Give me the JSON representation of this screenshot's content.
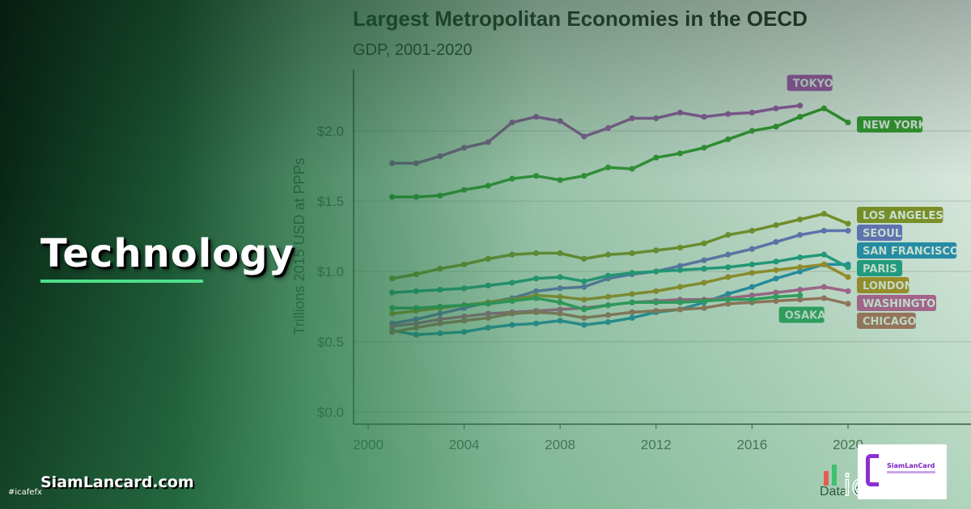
{
  "page": {
    "category": "Technology",
    "site": "SiamLancard.com",
    "hashtag": "#icafefx",
    "logo_text": "SiamLanCard"
  },
  "chart_data": {
    "type": "line",
    "title": "Largest Metropolitan Economies in the OECD",
    "subtitle": "GDP, 2001-2020",
    "ylabel": "Trillions 2015 USD at PPPs",
    "source": "Data: OECD, US BEA",
    "xlim": [
      2000,
      2020
    ],
    "ylim": [
      0,
      2.4
    ],
    "xticks": [
      2000,
      2004,
      2008,
      2012,
      2016,
      2020
    ],
    "yticks": [
      {
        "value": 0,
        "label": "$0.0"
      },
      {
        "value": 0.5,
        "label": "$0.5"
      },
      {
        "value": 1.0,
        "label": "$1.0"
      },
      {
        "value": 1.5,
        "label": "$1.5"
      },
      {
        "value": 2.0,
        "label": "$2.0"
      }
    ],
    "grid": true,
    "series": [
      {
        "name": "TOKYO",
        "color": "#b046b8",
        "label_pos": "top",
        "x": [
          2001,
          2002,
          2003,
          2004,
          2005,
          2006,
          2007,
          2008,
          2009,
          2010,
          2011,
          2012,
          2013,
          2014,
          2015,
          2016,
          2017,
          2018
        ],
        "values": [
          1.77,
          1.77,
          1.82,
          1.88,
          1.92,
          2.06,
          2.1,
          2.07,
          1.96,
          2.02,
          2.09,
          2.09,
          2.13,
          2.1,
          2.12,
          2.13,
          2.16,
          2.18
        ]
      },
      {
        "name": "NEW YORK",
        "color": "#2e9a22",
        "label_pos": "right",
        "x": [
          2001,
          2002,
          2003,
          2004,
          2005,
          2006,
          2007,
          2008,
          2009,
          2010,
          2011,
          2012,
          2013,
          2014,
          2015,
          2016,
          2017,
          2018,
          2019,
          2020
        ],
        "values": [
          1.53,
          1.53,
          1.54,
          1.58,
          1.61,
          1.66,
          1.68,
          1.65,
          1.68,
          1.74,
          1.73,
          1.81,
          1.84,
          1.88,
          1.94,
          2.0,
          2.03,
          2.1,
          2.16,
          2.06
        ]
      },
      {
        "name": "LOS ANGELES",
        "color": "#8e8f12",
        "label_pos": "right",
        "x": [
          2001,
          2002,
          2003,
          2004,
          2005,
          2006,
          2007,
          2008,
          2009,
          2010,
          2011,
          2012,
          2013,
          2014,
          2015,
          2016,
          2017,
          2018,
          2019,
          2020
        ],
        "values": [
          0.95,
          0.98,
          1.02,
          1.05,
          1.09,
          1.12,
          1.13,
          1.13,
          1.09,
          1.12,
          1.13,
          1.15,
          1.17,
          1.2,
          1.26,
          1.29,
          1.33,
          1.37,
          1.41,
          1.34
        ]
      },
      {
        "name": "SEOUL",
        "color": "#6f66d6",
        "label_pos": "right",
        "x": [
          2001,
          2002,
          2003,
          2004,
          2005,
          2006,
          2007,
          2008,
          2009,
          2010,
          2011,
          2012,
          2013,
          2014,
          2015,
          2016,
          2017,
          2018,
          2019,
          2020
        ],
        "values": [
          0.63,
          0.66,
          0.7,
          0.74,
          0.78,
          0.81,
          0.86,
          0.88,
          0.89,
          0.95,
          0.98,
          1.0,
          1.04,
          1.08,
          1.12,
          1.16,
          1.21,
          1.26,
          1.29,
          1.29
        ]
      },
      {
        "name": "SAN FRANCISCO",
        "color": "#1a8bc4",
        "label_pos": "right",
        "x": [
          2001,
          2002,
          2003,
          2004,
          2005,
          2006,
          2007,
          2008,
          2009,
          2010,
          2011,
          2012,
          2013,
          2014,
          2015,
          2016,
          2017,
          2018,
          2019,
          2020
        ],
        "values": [
          0.58,
          0.55,
          0.56,
          0.57,
          0.6,
          0.62,
          0.63,
          0.65,
          0.62,
          0.64,
          0.67,
          0.71,
          0.73,
          0.78,
          0.84,
          0.89,
          0.95,
          1.0,
          1.05,
          1.05
        ]
      },
      {
        "name": "PARIS",
        "color": "#14a08e",
        "label_pos": "right",
        "x": [
          2001,
          2002,
          2003,
          2004,
          2005,
          2006,
          2007,
          2008,
          2009,
          2010,
          2011,
          2012,
          2013,
          2014,
          2015,
          2016,
          2017,
          2018,
          2019,
          2020
        ],
        "values": [
          0.85,
          0.86,
          0.87,
          0.88,
          0.9,
          0.92,
          0.95,
          0.96,
          0.93,
          0.97,
          0.99,
          1.0,
          1.01,
          1.02,
          1.03,
          1.05,
          1.07,
          1.1,
          1.12,
          1.03
        ]
      },
      {
        "name": "LONDON",
        "color": "#c18a10",
        "label_pos": "right",
        "x": [
          2001,
          2002,
          2003,
          2004,
          2005,
          2006,
          2007,
          2008,
          2009,
          2010,
          2011,
          2012,
          2013,
          2014,
          2015,
          2016,
          2017,
          2018,
          2019,
          2020
        ],
        "values": [
          0.7,
          0.72,
          0.74,
          0.76,
          0.78,
          0.8,
          0.83,
          0.82,
          0.8,
          0.82,
          0.84,
          0.86,
          0.89,
          0.92,
          0.96,
          0.99,
          1.01,
          1.03,
          1.05,
          0.96
        ]
      },
      {
        "name": "WASHINGTON",
        "color": "#d44ea0",
        "label_pos": "right",
        "x": [
          2001,
          2002,
          2003,
          2004,
          2005,
          2006,
          2007,
          2008,
          2009,
          2010,
          2011,
          2012,
          2013,
          2014,
          2015,
          2016,
          2017,
          2018,
          2019,
          2020
        ],
        "values": [
          0.61,
          0.63,
          0.66,
          0.68,
          0.7,
          0.71,
          0.72,
          0.73,
          0.74,
          0.76,
          0.78,
          0.79,
          0.8,
          0.8,
          0.81,
          0.83,
          0.85,
          0.87,
          0.89,
          0.86
        ]
      },
      {
        "name": "CHICAGO",
        "color": "#c2655a",
        "label_pos": "right",
        "x": [
          2001,
          2002,
          2003,
          2004,
          2005,
          2006,
          2007,
          2008,
          2009,
          2010,
          2011,
          2012,
          2013,
          2014,
          2015,
          2016,
          2017,
          2018,
          2019,
          2020
        ],
        "values": [
          0.57,
          0.6,
          0.63,
          0.65,
          0.67,
          0.7,
          0.71,
          0.7,
          0.67,
          0.69,
          0.71,
          0.72,
          0.73,
          0.74,
          0.77,
          0.78,
          0.79,
          0.8,
          0.81,
          0.77
        ]
      },
      {
        "name": "OSAKA",
        "color": "#26a860",
        "label_pos": "below",
        "x": [
          2001,
          2002,
          2003,
          2004,
          2005,
          2006,
          2007,
          2008,
          2009,
          2010,
          2011,
          2012,
          2013,
          2014,
          2015,
          2016,
          2017,
          2018
        ],
        "values": [
          0.74,
          0.74,
          0.75,
          0.76,
          0.77,
          0.79,
          0.81,
          0.78,
          0.73,
          0.76,
          0.78,
          0.78,
          0.78,
          0.79,
          0.8,
          0.8,
          0.82,
          0.83
        ]
      }
    ]
  }
}
